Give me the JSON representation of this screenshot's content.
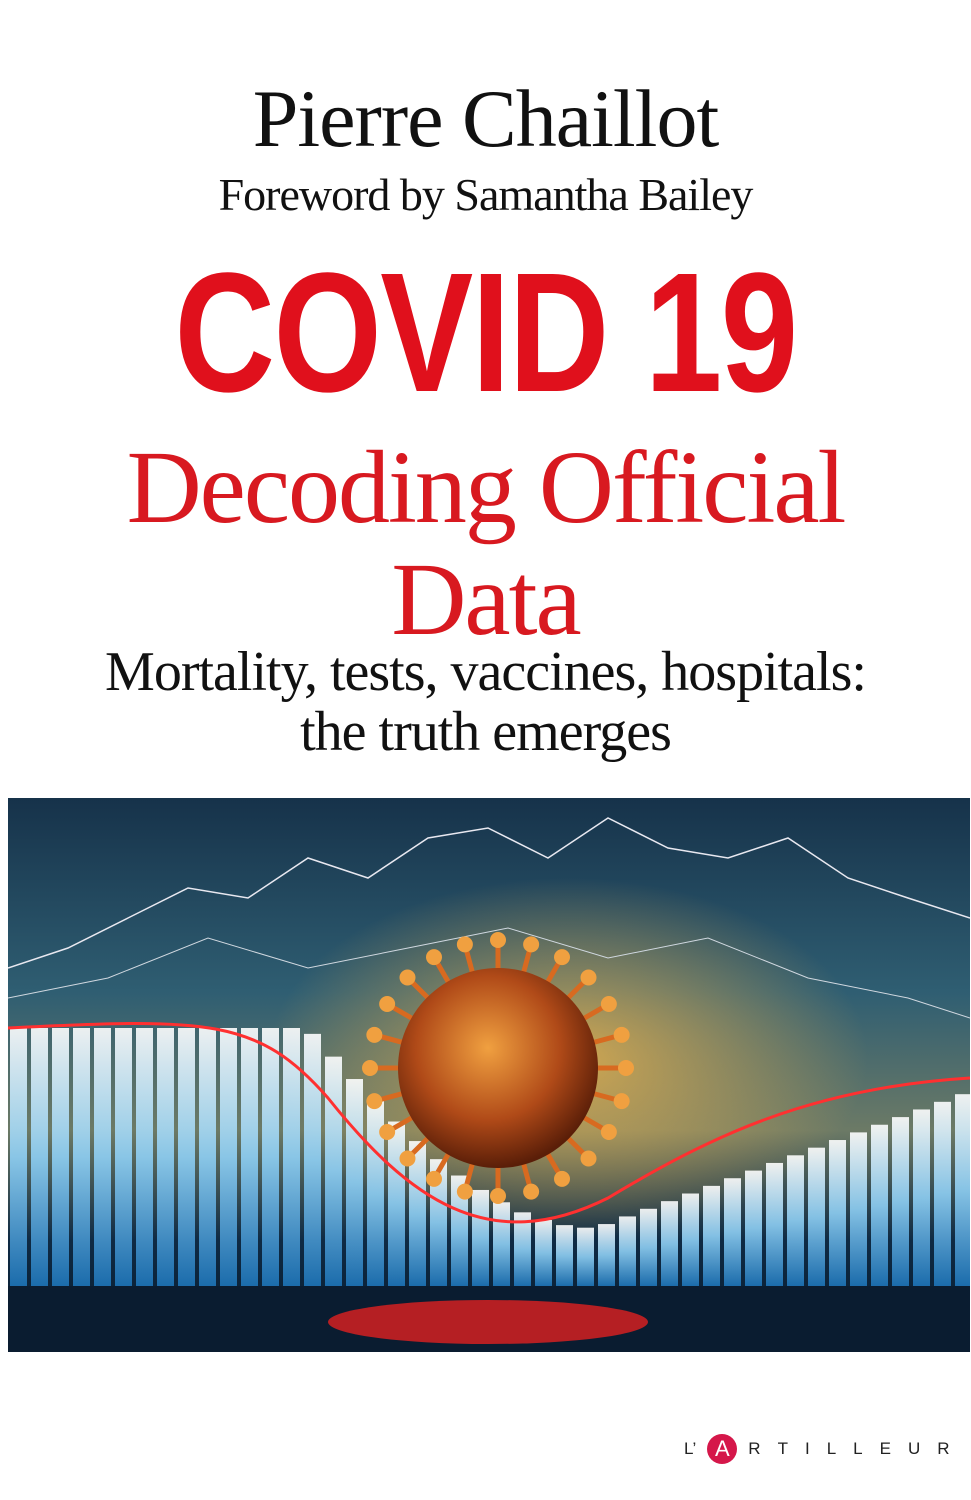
{
  "cover": {
    "author": "Pierre Chaillot",
    "foreword": "Foreword by  Samantha Bailey",
    "title": "COVID 19",
    "subtitle_line1": "Decoding Official",
    "subtitle_line2": "Data",
    "tagline_line1": "Mortality, tests, vaccines, hospitals:",
    "tagline_line2": "the truth emerges",
    "publisher": {
      "prefix": "L’",
      "logo_letter": "A",
      "suffix": [
        "R",
        "T",
        "I",
        "L",
        "L",
        "E",
        "U",
        "R"
      ]
    },
    "colors": {
      "title_red": "#e0101c",
      "publisher_red": "#d5174a",
      "art_dark": "#0d2235",
      "bar_blue": "#2a8fd0"
    }
  }
}
